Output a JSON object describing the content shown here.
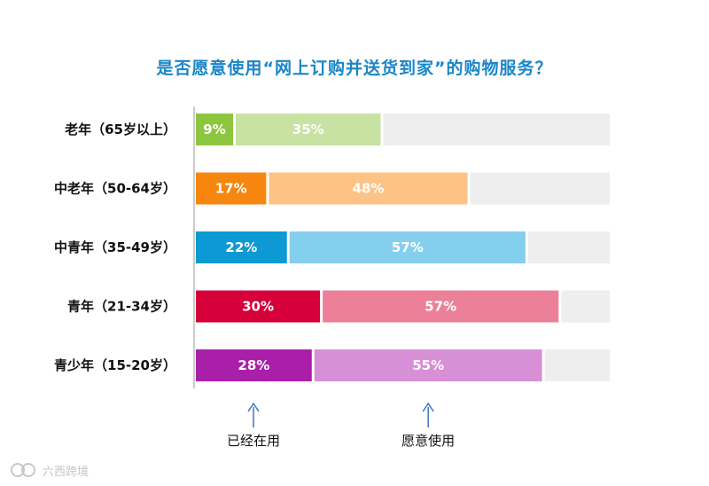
{
  "chart_data": {
    "type": "bar",
    "orientation": "horizontal",
    "stacked": true,
    "title": "是否愿意使用“网上订购并送货到家”的购物服务？",
    "categories": [
      "老年（65岁以上）",
      "中老年（50-64岁）",
      "中青年（35-49岁）",
      "青年（21-34岁）",
      "青少年（15-20岁）"
    ],
    "series": [
      {
        "name": "已经在用",
        "values": [
          9,
          17,
          22,
          30,
          28
        ],
        "labels": [
          "9%",
          "17%",
          "22%",
          "30%",
          "28%"
        ]
      },
      {
        "name": "愿意使用",
        "values": [
          35,
          48,
          57,
          57,
          55
        ],
        "labels": [
          "35%",
          "48%",
          "57%",
          "57%",
          "55%"
        ]
      }
    ],
    "xlim": [
      0,
      100
    ],
    "grid": false,
    "colors": {
      "used": [
        "#8cc63f",
        "#f7860e",
        "#0d9ad4",
        "#d6003b",
        "#a91fa9"
      ],
      "willing": [
        "#c8e2a3",
        "#fdc386",
        "#84cfee",
        "#ec8099",
        "#d78fd6"
      ],
      "remainder": "#eeeeee",
      "title": "#1a86c8",
      "arrow": "#3a78c4"
    }
  },
  "watermark": {
    "text": "六西跨境"
  }
}
